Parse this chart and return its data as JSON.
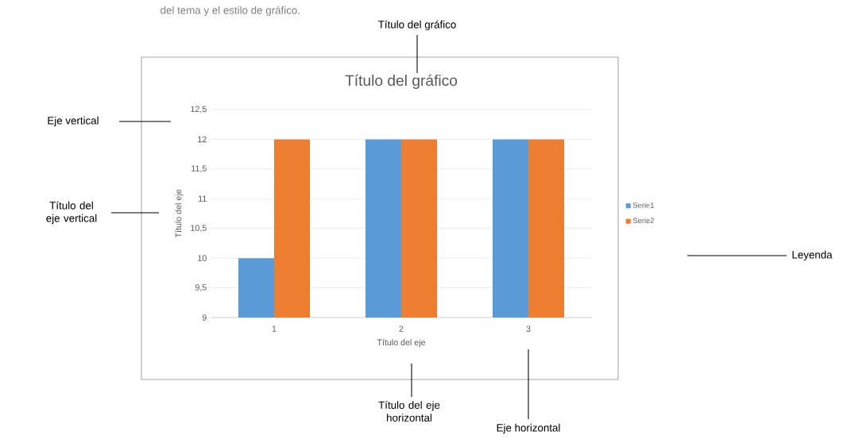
{
  "chart_data": {
    "type": "bar",
    "title": "Título del gráfico",
    "xlabel": "Título del eje",
    "ylabel": "Título del eje",
    "categories": [
      "1",
      "2",
      "3"
    ],
    "series": [
      {
        "name": "Serie1",
        "color": "#5b9bd5",
        "values": [
          10,
          12,
          12
        ]
      },
      {
        "name": "Serie2",
        "color": "#ed7d31",
        "values": [
          12,
          12,
          12
        ]
      }
    ],
    "ylim": [
      9,
      12.5
    ],
    "yticks": [
      9,
      {
        "value": 9.5,
        "label": "9,5"
      },
      10,
      {
        "value": 10.5,
        "label": "10,5"
      },
      11,
      {
        "value": 11.5,
        "label": "11,5"
      },
      12,
      {
        "value": 12.5,
        "label": "12,5"
      }
    ],
    "grid": "y",
    "legend": "right",
    "annotations": [
      "del tema y el estilo de gráfico.",
      "Título del gráfico",
      "Eje vertical",
      "Título del eje vertical",
      "Leyenda",
      "Título del eje horizontal",
      "Eje horizontal"
    ]
  }
}
